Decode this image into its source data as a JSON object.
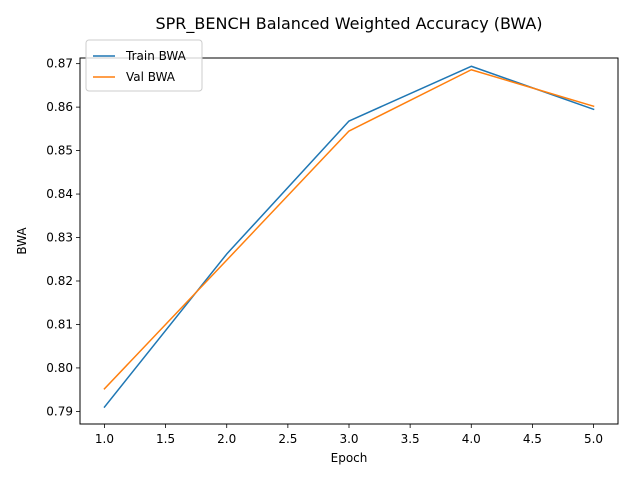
{
  "chart_data": {
    "type": "line",
    "title": "SPR_BENCH Balanced Weighted Accuracy (BWA)",
    "xlabel": "Epoch",
    "ylabel": "BWA",
    "x": [
      1,
      2,
      3,
      4,
      5
    ],
    "xlim": [
      0.8,
      5.2
    ],
    "ylim": [
      0.7871,
      0.8713
    ],
    "xticks": [
      1.0,
      1.5,
      2.0,
      2.5,
      3.0,
      3.5,
      4.0,
      4.5,
      5.0
    ],
    "xtick_labels": [
      "1.0",
      "1.5",
      "2.0",
      "2.5",
      "3.0",
      "3.5",
      "4.0",
      "4.5",
      "5.0"
    ],
    "yticks": [
      0.79,
      0.8,
      0.81,
      0.82,
      0.83,
      0.84,
      0.85,
      0.86,
      0.87
    ],
    "ytick_labels": [
      "0.79",
      "0.80",
      "0.81",
      "0.82",
      "0.83",
      "0.84",
      "0.85",
      "0.86",
      "0.87"
    ],
    "grid": false,
    "legend_position": "top-left",
    "series": [
      {
        "name": "Train BWA",
        "color": "#1f77b4",
        "values": [
          0.791,
          0.8262,
          0.8568,
          0.8694,
          0.8595
        ]
      },
      {
        "name": "Val BWA",
        "color": "#ff7f0e",
        "values": [
          0.7952,
          0.8248,
          0.8545,
          0.8686,
          0.8602
        ]
      }
    ]
  }
}
